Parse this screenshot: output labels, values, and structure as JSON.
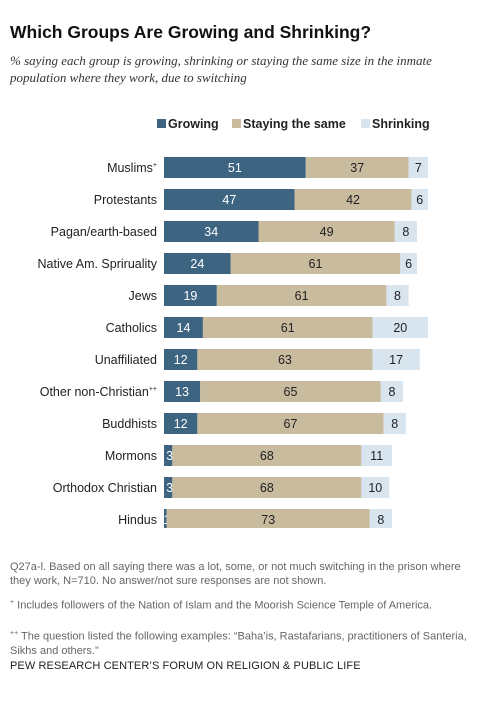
{
  "title": "Which Groups Are Growing and Shrinking?",
  "subtitle": "% saying each group is growing, shrinking or staying the same size in the inmate population where they work, due to switching",
  "notes": [
    "Q27a-l. Based on all saying there was a lot, some, or not much switching in the prison where they work, N=710. No answer/not sure responses are not shown.",
    "Includes followers of the Nation of Islam and the Moorish Science Temple of America.",
    "The question listed the following examples: “Baha’is, Rastafarians, practitioners of Santeria, Sikhs and others.”"
  ],
  "footnote_marks": {
    "single": "+",
    "double": "++"
  },
  "source": "PEW RESEARCH CENTER’S FORUM ON RELIGION & PUBLIC LIFE",
  "colors": {
    "growing": "#3d6481",
    "same": "#c9bb9e",
    "shrinking": "#d8e4ee"
  },
  "chart_data": {
    "type": "bar",
    "orientation": "horizontal",
    "stacked": true,
    "legend_position": "top-right",
    "categories": [
      "Muslims",
      "Protestants",
      "Pagan/earth-based",
      "Native Am. Spriruality",
      "Jews",
      "Catholics",
      "Unaffiliated",
      "Other non-Christian",
      "Buddhists",
      "Mormons",
      "Orthodox Christian",
      "Hindus"
    ],
    "category_marks": [
      "+",
      "",
      "",
      "",
      "",
      "",
      "",
      "++",
      "",
      "",
      "",
      ""
    ],
    "series": [
      {
        "name": "Growing",
        "values": [
          51,
          47,
          34,
          24,
          19,
          14,
          12,
          13,
          12,
          3,
          3,
          1
        ]
      },
      {
        "name": "Staying the same",
        "values": [
          37,
          42,
          49,
          61,
          61,
          61,
          63,
          65,
          67,
          68,
          68,
          73
        ]
      },
      {
        "name": "Shrinking",
        "values": [
          7,
          6,
          8,
          6,
          8,
          20,
          17,
          8,
          8,
          11,
          10,
          8
        ]
      }
    ]
  }
}
